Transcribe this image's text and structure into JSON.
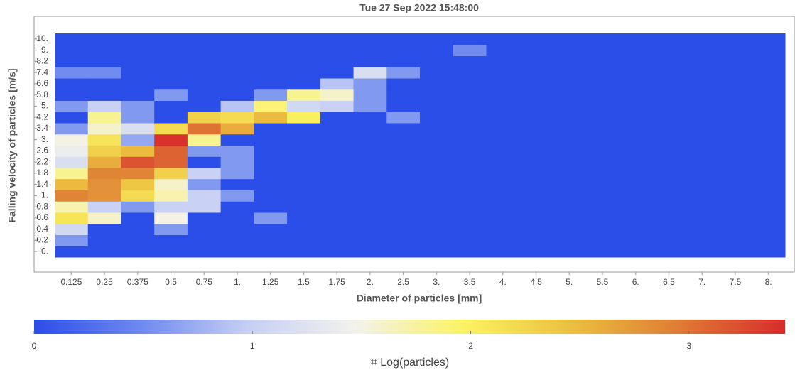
{
  "chart_data": {
    "type": "heatmap",
    "title": "Tue 27 Sep 2022 15:48:00",
    "x_label": "Diameter of particles [mm]",
    "y_label": "Falling velocity of particles [m/s]",
    "colorbar_label": "⌗ Log(particles)",
    "x": [
      "0.125",
      "0.25",
      "0.375",
      "0.5",
      "0.75",
      "1.",
      "1.25",
      "1.5",
      "1.75",
      "2.",
      "2.5",
      "3.",
      "3.5",
      "4.",
      "4.5",
      "5.",
      "5.5",
      "6.",
      "6.5",
      "7.",
      "7.5",
      "8."
    ],
    "y": [
      "0.",
      "0.2",
      "0.4",
      "0.6",
      "0.8",
      "1.",
      "1.4",
      "1.8",
      "2.2",
      "2.6",
      "3.",
      "3.4",
      "4.2",
      "5.",
      "5.8",
      "6.6",
      "7.4",
      "8.2",
      "9.",
      "10."
    ],
    "z": [
      [
        0,
        0,
        0,
        0,
        0,
        0,
        0,
        0,
        0,
        0,
        0,
        0,
        0,
        0,
        0,
        0,
        0,
        0,
        0,
        0,
        0,
        0
      ],
      [
        0.6,
        0,
        0,
        0,
        0,
        0,
        0,
        0,
        0,
        0,
        0,
        0,
        0,
        0,
        0,
        0,
        0,
        0,
        0,
        0,
        0,
        0
      ],
      [
        1.1,
        0,
        0,
        0.6,
        0,
        0,
        0,
        0,
        0,
        0,
        0,
        0,
        0,
        0,
        0,
        0,
        0,
        0,
        0,
        0,
        0,
        0
      ],
      [
        2.1,
        1.6,
        0,
        1.5,
        0,
        0,
        0.6,
        0,
        0,
        0,
        0,
        0,
        0,
        0,
        0,
        0,
        0,
        0,
        0,
        0,
        0,
        0
      ],
      [
        1.7,
        1.0,
        0.6,
        1.0,
        1.0,
        0,
        0,
        0,
        0,
        0,
        0,
        0,
        0,
        0,
        0,
        0,
        0,
        0,
        0,
        0,
        0,
        0
      ],
      [
        2.9,
        2.8,
        2.2,
        1.7,
        1.0,
        0.6,
        0,
        0,
        0,
        0,
        0,
        0,
        0,
        0,
        0,
        0,
        0,
        0,
        0,
        0,
        0,
        0
      ],
      [
        2.5,
        2.8,
        2.4,
        1.6,
        0.6,
        0,
        0,
        0,
        0,
        0,
        0,
        0,
        0,
        0,
        0,
        0,
        0,
        0,
        0,
        0,
        0,
        0
      ],
      [
        1.8,
        2.9,
        2.9,
        2.3,
        1.0,
        0.6,
        0,
        0,
        0,
        0,
        0,
        0,
        0,
        0,
        0,
        0,
        0,
        0,
        0,
        0,
        0,
        0
      ],
      [
        1.2,
        2.6,
        3.2,
        3.1,
        0,
        0.6,
        0,
        0,
        0,
        0,
        0,
        0,
        0,
        0,
        0,
        0,
        0,
        0,
        0,
        0,
        0,
        0
      ],
      [
        1.4,
        2.3,
        2.5,
        3.1,
        0.6,
        0.6,
        0,
        0,
        0,
        0,
        0,
        0,
        0,
        0,
        0,
        0,
        0,
        0,
        0,
        0,
        0,
        0
      ],
      [
        1.5,
        2.1,
        0.7,
        3.4,
        1.8,
        0,
        0,
        0,
        0,
        0,
        0,
        0,
        0,
        0,
        0,
        0,
        0,
        0,
        0,
        0,
        0,
        0
      ],
      [
        0.6,
        1.6,
        1.2,
        2.2,
        3.0,
        2.6,
        0,
        0,
        0,
        0,
        0,
        0,
        0,
        0,
        0,
        0,
        0,
        0,
        0,
        0,
        0,
        0
      ],
      [
        0,
        1.8,
        0.6,
        0,
        2.3,
        2.2,
        2.5,
        2.0,
        0,
        0,
        0.6,
        0,
        0,
        0,
        0,
        0,
        0,
        0,
        0,
        0,
        0,
        0
      ],
      [
        0.6,
        1.0,
        0.6,
        0,
        0,
        0.9,
        1.9,
        1.1,
        1.0,
        0.6,
        0,
        0,
        0,
        0,
        0,
        0,
        0,
        0,
        0,
        0,
        0,
        0
      ],
      [
        0,
        0,
        0,
        0.6,
        0,
        0,
        0.6,
        1.8,
        1.6,
        0.6,
        0,
        0,
        0,
        0,
        0,
        0,
        0,
        0,
        0,
        0,
        0,
        0
      ],
      [
        0,
        0,
        0,
        0,
        0,
        0,
        0,
        0,
        0.9,
        0.6,
        0,
        0,
        0,
        0,
        0,
        0,
        0,
        0,
        0,
        0,
        0,
        0
      ],
      [
        0.5,
        0.5,
        0,
        0,
        0,
        0,
        0,
        0,
        0,
        1.2,
        0.6,
        0,
        0,
        0,
        0,
        0,
        0,
        0,
        0,
        0,
        0,
        0
      ],
      [
        0,
        0,
        0,
        0,
        0,
        0,
        0,
        0,
        0,
        0,
        0,
        0,
        0,
        0,
        0,
        0,
        0,
        0,
        0,
        0,
        0,
        0
      ],
      [
        0,
        0,
        0,
        0,
        0,
        0,
        0,
        0,
        0,
        0,
        0,
        0,
        0.5,
        0,
        0,
        0,
        0,
        0,
        0,
        0,
        0,
        0
      ],
      [
        0,
        0,
        0,
        0,
        0,
        0,
        0,
        0,
        0,
        0,
        0,
        0,
        0,
        0,
        0,
        0,
        0,
        0,
        0,
        0,
        0,
        0
      ]
    ],
    "zlim": [
      0,
      3.44
    ],
    "zticks": [
      0,
      1,
      2,
      3
    ],
    "colorscale": [
      "#2b4de8",
      "#6f8aef",
      "#c7d0f4",
      "#f3f2ec",
      "#fbf363",
      "#ecc03f",
      "#df7d35",
      "#d82b2b"
    ]
  }
}
